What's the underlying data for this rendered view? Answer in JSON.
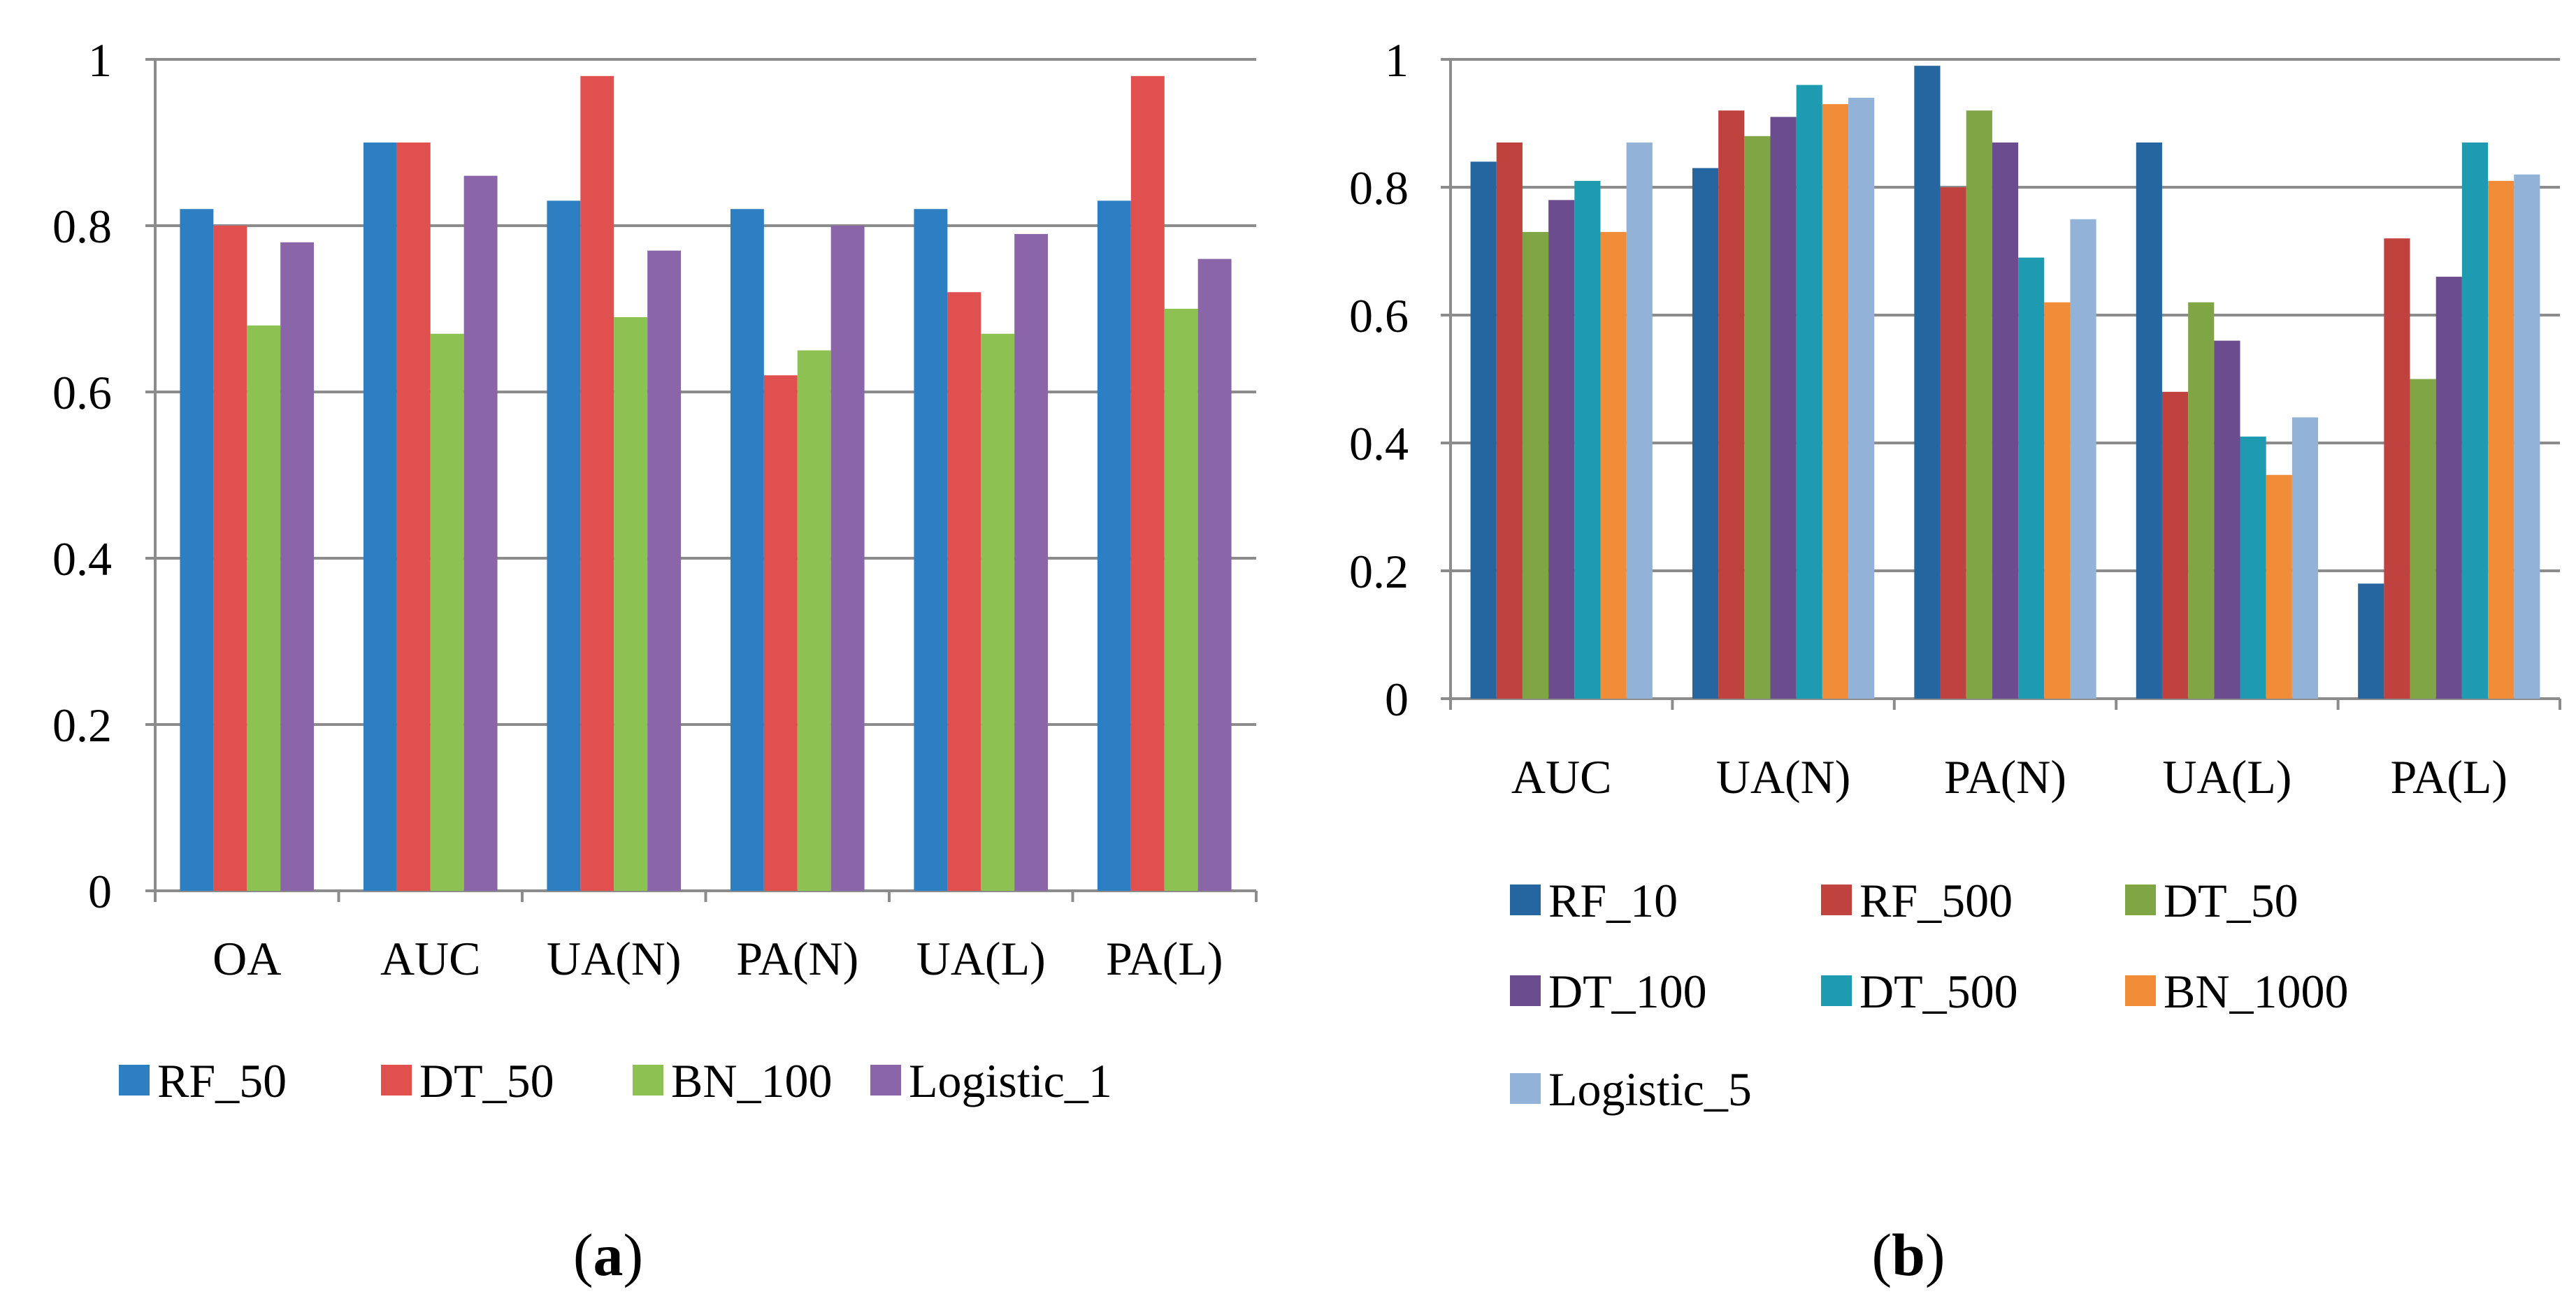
{
  "chart_data": [
    {
      "type": "bar",
      "panel_label": "a",
      "categories": [
        "OA",
        "AUC",
        "UA(N)",
        "PA(N)",
        "UA(L)",
        "PA(L)"
      ],
      "series": [
        {
          "name": "RF_50",
          "color": "#2E7EC2",
          "values": [
            0.82,
            0.9,
            0.83,
            0.82,
            0.82,
            0.83
          ]
        },
        {
          "name": "DT_50",
          "color": "#E0504F",
          "values": [
            0.8,
            0.9,
            0.98,
            0.62,
            0.72,
            0.98
          ]
        },
        {
          "name": "BN_100",
          "color": "#8DC152",
          "values": [
            0.68,
            0.67,
            0.69,
            0.65,
            0.67,
            0.7
          ]
        },
        {
          "name": "Logistic_1",
          "color": "#8A65A8",
          "values": [
            0.78,
            0.86,
            0.77,
            0.8,
            0.79,
            0.76
          ]
        }
      ],
      "yticks": [
        "0",
        "0.2",
        "0.4",
        "0.6",
        "0.8",
        "1"
      ],
      "ylim": [
        0,
        1
      ],
      "grid": true,
      "legend": "bottom"
    },
    {
      "type": "bar",
      "panel_label": "b",
      "categories": [
        "AUC",
        "UA(N)",
        "PA(N)",
        "UA(L)",
        "PA(L)"
      ],
      "series": [
        {
          "name": "RF_10",
          "color": "#2566A1",
          "values": [
            0.84,
            0.83,
            0.99,
            0.87,
            0.18
          ]
        },
        {
          "name": "RF_500",
          "color": "#C0423F",
          "values": [
            0.87,
            0.92,
            0.8,
            0.48,
            0.72
          ]
        },
        {
          "name": "DT_50",
          "color": "#7FA544",
          "values": [
            0.73,
            0.88,
            0.92,
            0.62,
            0.5
          ]
        },
        {
          "name": "DT_100",
          "color": "#6B4C8E",
          "values": [
            0.78,
            0.91,
            0.87,
            0.56,
            0.66
          ]
        },
        {
          "name": "DT_500",
          "color": "#1E9BB1",
          "values": [
            0.81,
            0.96,
            0.69,
            0.41,
            0.87
          ]
        },
        {
          "name": "BN_1000",
          "color": "#F18D38",
          "values": [
            0.73,
            0.93,
            0.62,
            0.35,
            0.81
          ]
        },
        {
          "name": "Logistic_5",
          "color": "#93B2D8",
          "values": [
            0.87,
            0.94,
            0.75,
            0.44,
            0.82
          ]
        }
      ],
      "yticks": [
        "0",
        "0.2",
        "0.4",
        "0.6",
        "0.8",
        "1"
      ],
      "ylim": [
        0,
        1
      ],
      "grid": true,
      "legend": "bottom"
    }
  ]
}
